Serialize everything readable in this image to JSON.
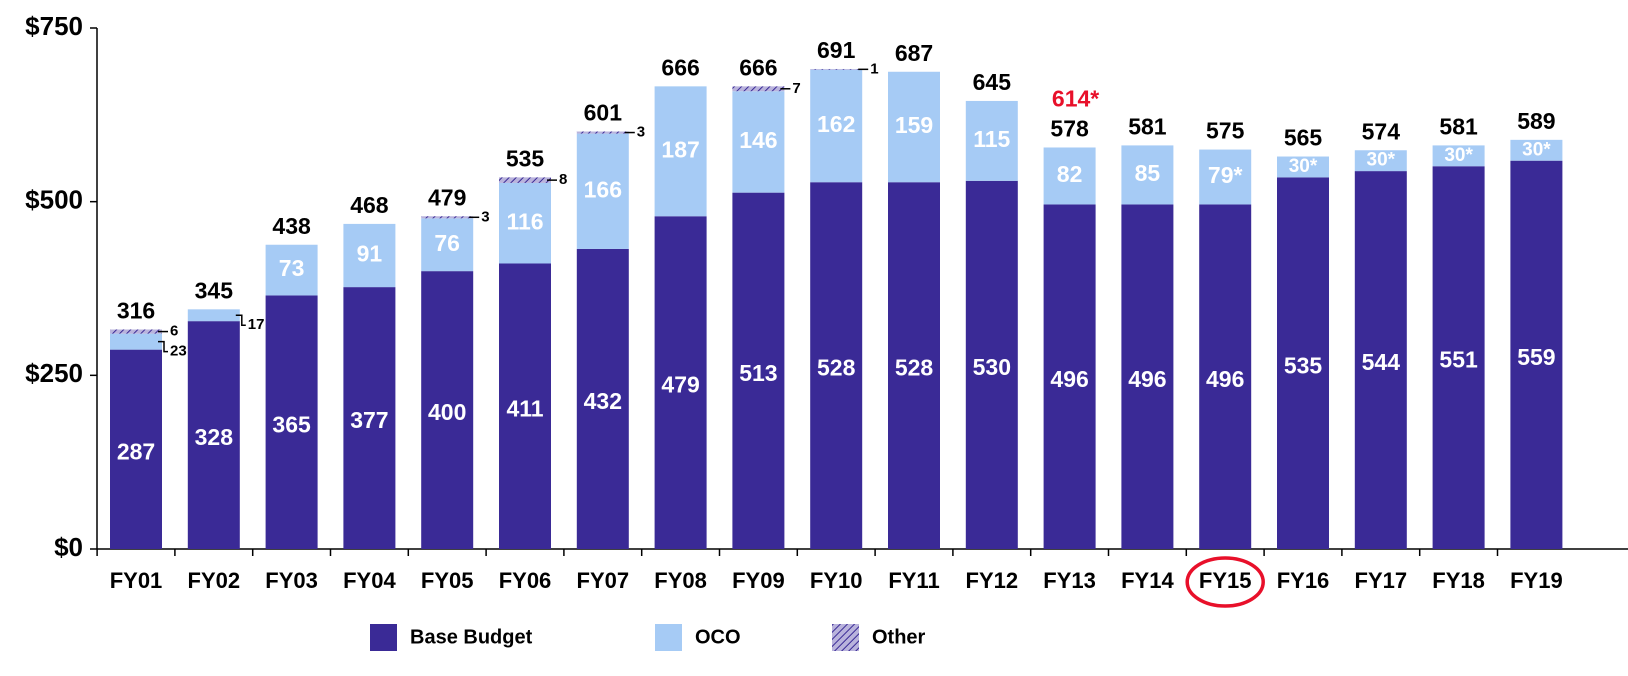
{
  "chart_data": {
    "type": "stacked_bar",
    "categories": [
      "FY01",
      "FY02",
      "FY03",
      "FY04",
      "FY05",
      "FY06",
      "FY07",
      "FY08",
      "FY09",
      "FY10",
      "FY11",
      "FY12",
      "FY13",
      "FY14",
      "FY15",
      "FY16",
      "FY17",
      "FY18",
      "FY19"
    ],
    "series": [
      {
        "name": "Base Budget",
        "color": "#3a2a96",
        "values": [
          287,
          328,
          365,
          377,
          400,
          411,
          432,
          479,
          513,
          528,
          528,
          530,
          496,
          496,
          496,
          535,
          544,
          551,
          559
        ]
      },
      {
        "name": "OCO",
        "color": "#a6cbf5",
        "values": [
          23,
          17,
          73,
          91,
          76,
          116,
          166,
          187,
          146,
          162,
          159,
          115,
          82,
          85,
          79,
          30,
          30,
          30,
          30
        ],
        "value_labels": [
          "23",
          "17",
          "73",
          "91",
          "76",
          "116",
          "166",
          "187",
          "146",
          "162",
          "159",
          "115",
          "82",
          "85",
          "79*",
          "30*",
          "30*",
          "30*",
          "30*"
        ]
      },
      {
        "name": "Other",
        "color": "#7a70b8",
        "hatch": true,
        "values": [
          6,
          null,
          null,
          null,
          3,
          8,
          3,
          null,
          7,
          1,
          null,
          null,
          null,
          null,
          null,
          null,
          null,
          null,
          null
        ]
      }
    ],
    "totals": [
      316,
      345,
      438,
      468,
      479,
      535,
      601,
      666,
      666,
      691,
      687,
      645,
      578,
      581,
      575,
      565,
      574,
      581,
      589
    ],
    "annotation": "614*",
    "ylim": [
      0,
      750
    ],
    "yticks": [
      {
        "value": 0,
        "label": "$0"
      },
      {
        "value": 250,
        "label": "$250"
      },
      {
        "value": 500,
        "label": "$500"
      },
      {
        "value": 750,
        "label": "$750"
      }
    ]
  }
}
